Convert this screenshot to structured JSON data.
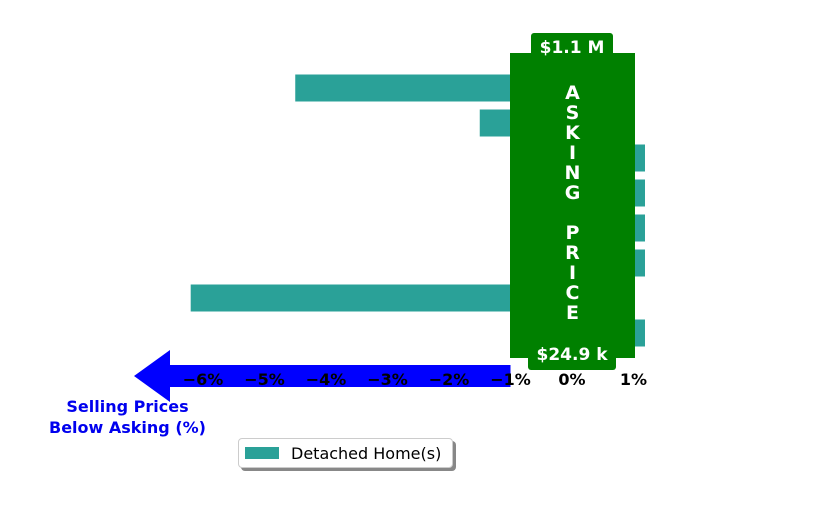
{
  "chart_data": {
    "type": "bar",
    "orientation": "horizontal",
    "series": [
      {
        "name": "Detached Home(s)",
        "color": "#2aa198",
        "values": [
          -4.5,
          -1.5,
          0.2,
          0.2,
          0.2,
          0.2,
          -6.2,
          0.2
        ]
      }
    ],
    "xlim": [
      -7.0,
      1.3
    ],
    "xticks": [
      -6,
      -5,
      -4,
      -3,
      -2,
      -1,
      0,
      1
    ],
    "xtick_labels": [
      "−6%",
      "−5%",
      "−4%",
      "−3%",
      "−2%",
      "−1%",
      "0%",
      "1%"
    ],
    "xlabel": "Selling Prices\nBelow Asking (%)",
    "legend": {
      "position": "bottom-center"
    },
    "annotations": {
      "top_price": "$1.1 M",
      "bottom_price": "$24.9 k",
      "vertical_label": "ASKING PRICE",
      "panel_color": "#008000",
      "arrow_color": "#0000ff"
    }
  }
}
